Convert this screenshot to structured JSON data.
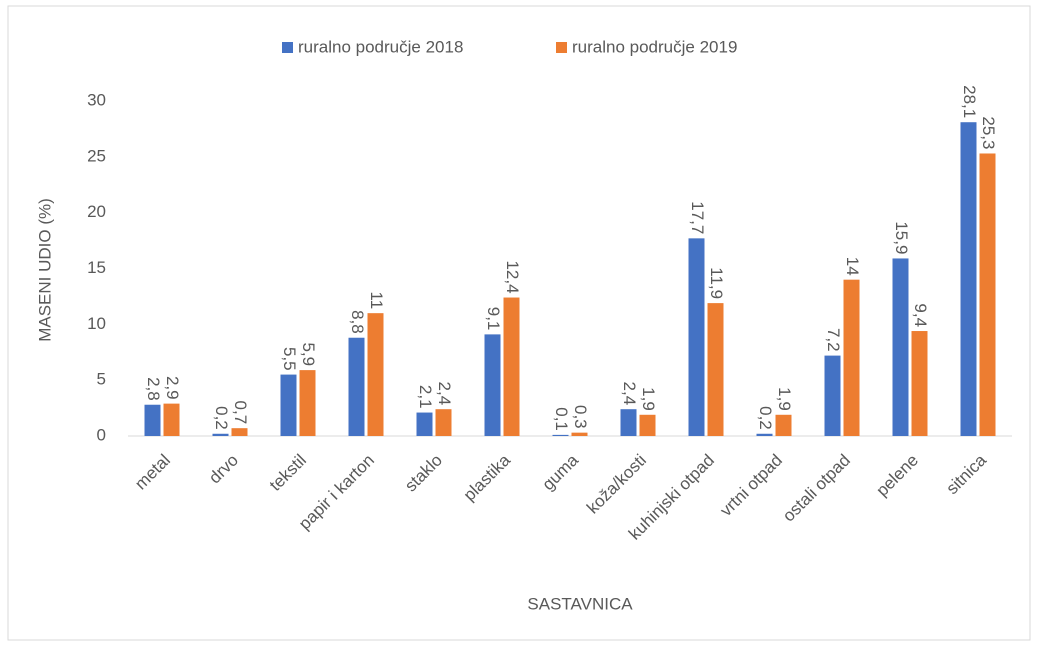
{
  "chart_data": {
    "type": "bar",
    "x_label": "SASTAVNICA",
    "y_label": "MASENI UDIO (%)",
    "categories": [
      "metal",
      "drvo",
      "tekstil",
      "papir i karton",
      "staklo",
      "plastika",
      "guma",
      "koža/kosti",
      "kuhinjski otpad",
      "vrtni otpad",
      "ostali otpad",
      "pelene",
      "sitnica"
    ],
    "series": [
      {
        "name": "ruralno područje 2018",
        "color": "#4472c4",
        "values": [
          2.8,
          0.2,
          5.5,
          8.8,
          2.1,
          9.1,
          0.1,
          2.4,
          17.7,
          0.2,
          7.2,
          15.9,
          28.1
        ],
        "value_labels": [
          "2,8",
          "0,2",
          "5,5",
          "8,8",
          "2,1",
          "9,1",
          "0,1",
          "2,4",
          "17,7",
          "0,2",
          "7,2",
          "15,9",
          "28,1"
        ]
      },
      {
        "name": "ruralno područje 2019",
        "color": "#ed7d31",
        "values": [
          2.9,
          0.7,
          5.9,
          11,
          2.4,
          12.4,
          0.3,
          1.9,
          11.9,
          1.9,
          14,
          9.4,
          25.3
        ],
        "value_labels": [
          "2,9",
          "0,7",
          "5,9",
          "11",
          "2,4",
          "12,4",
          "0,3",
          "1,9",
          "11,9",
          "1,9",
          "14",
          "9,4",
          "25,3"
        ]
      }
    ],
    "ylim": [
      0,
      30
    ],
    "yticks": [
      0,
      5,
      10,
      15,
      20,
      25,
      30
    ],
    "grid": false,
    "legend": "top"
  }
}
